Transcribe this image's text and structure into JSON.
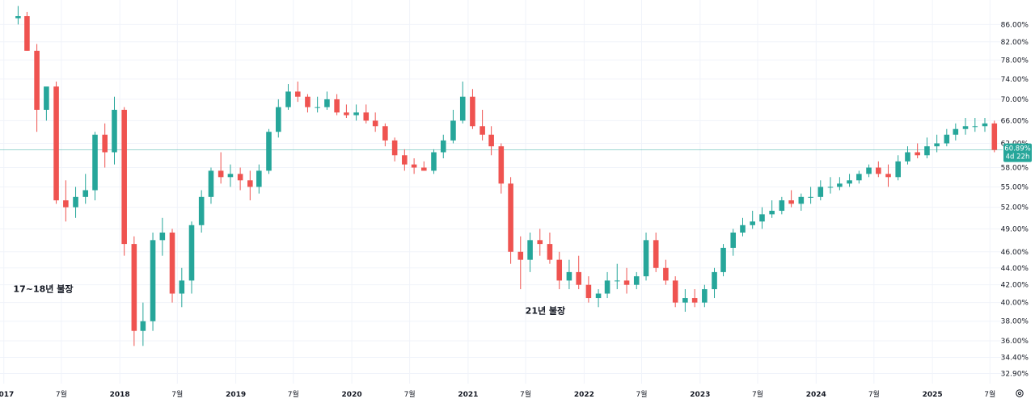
{
  "chart_data": {
    "type": "candlestick",
    "title": "",
    "xlabel": "",
    "ylabel": "",
    "y_scale": "log",
    "ylim": [
      32.0,
      92.0
    ],
    "xlim": [
      "2016-12-20",
      "2025-08-10"
    ],
    "grid": true,
    "y_ticks": [
      "86.00%",
      "82.00%",
      "78.00%",
      "74.00%",
      "70.00%",
      "66.00%",
      "62.00%",
      "58.00%",
      "55.00%",
      "52.00%",
      "49.00%",
      "46.00%",
      "44.00%",
      "42.00%",
      "40.00%",
      "38.00%",
      "36.00%",
      "34.40%",
      "32.90%"
    ],
    "x_ticks": [
      {
        "label": "2017",
        "date": "2017-01-01",
        "year": true
      },
      {
        "label": "7월",
        "date": "2017-07-01",
        "year": false
      },
      {
        "label": "2018",
        "date": "2018-01-01",
        "year": true
      },
      {
        "label": "7월",
        "date": "2018-07-01",
        "year": false
      },
      {
        "label": "2019",
        "date": "2019-01-01",
        "year": true
      },
      {
        "label": "7월",
        "date": "2019-07-01",
        "year": false
      },
      {
        "label": "2020",
        "date": "2020-01-01",
        "year": true
      },
      {
        "label": "7월",
        "date": "2020-07-01",
        "year": false
      },
      {
        "label": "2021",
        "date": "2021-01-01",
        "year": true
      },
      {
        "label": "7월",
        "date": "2021-07-01",
        "year": false
      },
      {
        "label": "2022",
        "date": "2022-01-01",
        "year": true
      },
      {
        "label": "7월",
        "date": "2022-07-01",
        "year": false
      },
      {
        "label": "2023",
        "date": "2023-01-01",
        "year": true
      },
      {
        "label": "7월",
        "date": "2023-07-01",
        "year": false
      },
      {
        "label": "2024",
        "date": "2024-01-01",
        "year": true
      },
      {
        "label": "7월",
        "date": "2024-07-01",
        "year": false
      },
      {
        "label": "2025",
        "date": "2025-01-01",
        "year": true
      },
      {
        "label": "7월",
        "date": "2025-07-01",
        "year": false
      }
    ],
    "annotations": [
      {
        "text": "17~18년 불장",
        "date": "2017-05-05",
        "y": 41.2
      },
      {
        "text": "21년 불장",
        "date": "2021-09-01",
        "y": 38.8
      }
    ],
    "last_price": {
      "value": 60.89,
      "label": "60.89%",
      "countdown": "4d 22h"
    },
    "colors": {
      "up": "#26a69a",
      "down": "#ef5350",
      "price_line": "#26a69a",
      "grid": "#f0f3fa"
    },
    "series": [
      {
        "x": [
          "2017-02-15",
          "2017-03-15",
          "2017-04-15",
          "2017-05-15",
          "2017-06-15",
          "2017-07-15",
          "2017-08-15",
          "2017-09-15",
          "2017-10-15",
          "2017-11-15",
          "2017-12-15",
          "2018-01-15",
          "2018-02-15",
          "2018-03-15",
          "2018-04-15",
          "2018-05-15",
          "2018-06-15",
          "2018-07-15",
          "2018-08-15",
          "2018-09-15",
          "2018-10-15",
          "2018-11-15",
          "2018-12-15",
          "2019-01-15",
          "2019-02-15",
          "2019-03-15",
          "2019-04-15",
          "2019-05-15",
          "2019-06-15",
          "2019-07-15",
          "2019-08-15",
          "2019-09-15",
          "2019-10-15",
          "2019-11-15",
          "2019-12-15",
          "2020-01-15",
          "2020-02-15",
          "2020-03-15",
          "2020-04-15",
          "2020-05-15",
          "2020-06-15",
          "2020-07-15",
          "2020-08-15",
          "2020-09-15",
          "2020-10-15",
          "2020-11-15",
          "2020-12-15",
          "2021-01-15",
          "2021-02-15",
          "2021-03-15",
          "2021-04-15",
          "2021-05-15",
          "2021-06-15",
          "2021-07-15",
          "2021-08-15",
          "2021-09-15",
          "2021-10-15",
          "2021-11-15",
          "2021-12-15",
          "2022-01-15",
          "2022-02-15",
          "2022-03-15",
          "2022-04-15",
          "2022-05-15",
          "2022-06-15",
          "2022-07-15",
          "2022-08-15",
          "2022-09-15",
          "2022-10-15",
          "2022-11-15",
          "2022-12-15",
          "2023-01-15",
          "2023-02-15",
          "2023-03-15",
          "2023-04-15",
          "2023-05-15",
          "2023-06-15",
          "2023-07-15",
          "2023-08-15",
          "2023-09-15",
          "2023-10-15",
          "2023-11-15",
          "2023-12-15",
          "2024-01-15",
          "2024-02-15",
          "2024-03-15",
          "2024-04-15",
          "2024-05-15",
          "2024-06-15",
          "2024-07-15",
          "2024-08-15",
          "2024-09-15",
          "2024-10-15",
          "2024-11-15",
          "2024-12-15",
          "2025-01-15",
          "2025-02-15",
          "2025-03-15",
          "2025-04-15",
          "2025-05-15",
          "2025-06-15",
          "2025-07-15"
        ],
        "open": [
          87.5,
          88.0,
          80.0,
          68.0,
          72.5,
          53.0,
          52.0,
          53.5,
          54.5,
          63.5,
          60.5,
          68.0,
          47.0,
          37.0,
          38.0,
          47.5,
          48.5,
          41.0,
          42.5,
          49.5,
          53.5,
          57.5,
          56.5,
          57.0,
          56.0,
          55.0,
          57.5,
          64.0,
          68.5,
          71.5,
          70.5,
          68.5,
          68.5,
          70.0,
          67.5,
          67.0,
          67.5,
          66.0,
          65.0,
          62.5,
          60.0,
          58.5,
          58.0,
          57.5,
          60.5,
          62.5,
          66.0,
          70.5,
          65.0,
          63.5,
          61.5,
          55.5,
          46.0,
          45.0,
          47.5,
          47.0,
          45.0,
          42.5,
          43.5,
          42.0,
          40.5,
          41.0,
          42.5,
          42.5,
          42.0,
          43.0,
          47.5,
          44.0,
          42.5,
          40.0,
          40.5,
          40.0,
          41.5,
          43.5,
          46.5,
          48.5,
          49.5,
          50.0,
          51.0,
          51.5,
          53.0,
          52.5,
          53.5,
          53.5,
          55.0,
          55.0,
          55.5,
          56.0,
          57.0,
          58.0,
          57.0,
          56.5,
          59.0,
          60.5,
          60.0,
          61.5,
          62.0,
          63.5,
          64.5,
          65.0,
          65.0,
          65.5
        ],
        "high": [
          90.5,
          89.0,
          81.5,
          72.0,
          73.5,
          56.0,
          55.0,
          57.0,
          64.0,
          65.5,
          70.5,
          68.5,
          48.0,
          40.0,
          48.5,
          50.5,
          49.0,
          44.0,
          50.0,
          54.5,
          58.0,
          60.5,
          58.5,
          58.0,
          57.5,
          58.5,
          64.5,
          70.0,
          73.0,
          73.5,
          71.0,
          70.5,
          71.5,
          71.0,
          69.0,
          69.0,
          69.0,
          67.5,
          65.5,
          63.0,
          61.0,
          59.5,
          59.0,
          61.0,
          63.5,
          68.0,
          73.5,
          72.0,
          68.0,
          65.0,
          62.0,
          56.5,
          48.0,
          48.5,
          49.0,
          48.5,
          46.0,
          45.0,
          45.5,
          43.0,
          41.5,
          43.5,
          44.5,
          44.0,
          43.5,
          48.5,
          48.5,
          45.0,
          43.0,
          41.5,
          41.5,
          42.0,
          44.0,
          47.0,
          49.0,
          50.5,
          51.5,
          52.0,
          53.0,
          53.5,
          54.5,
          54.0,
          55.0,
          56.0,
          56.5,
          56.5,
          57.0,
          57.5,
          58.5,
          59.0,
          58.5,
          60.0,
          61.5,
          62.0,
          63.0,
          63.5,
          64.5,
          65.5,
          66.5,
          66.5,
          66.5,
          66.0
        ],
        "low": [
          86.0,
          80.0,
          64.0,
          66.0,
          52.5,
          50.0,
          50.5,
          52.5,
          53.0,
          58.0,
          58.5,
          45.5,
          35.5,
          35.5,
          37.0,
          45.5,
          40.0,
          39.5,
          41.0,
          48.5,
          52.5,
          55.5,
          55.0,
          54.5,
          53.0,
          54.0,
          57.0,
          63.0,
          68.0,
          69.5,
          67.5,
          67.5,
          68.0,
          67.0,
          66.5,
          66.0,
          65.5,
          64.0,
          61.5,
          59.0,
          57.5,
          57.0,
          57.5,
          57.0,
          59.5,
          62.0,
          65.5,
          64.5,
          62.5,
          60.0,
          54.0,
          44.5,
          41.5,
          43.5,
          45.5,
          44.5,
          41.5,
          41.5,
          41.5,
          40.0,
          39.5,
          40.5,
          41.5,
          41.0,
          41.5,
          42.5,
          43.5,
          42.0,
          39.5,
          39.0,
          39.5,
          39.5,
          40.5,
          43.0,
          45.5,
          48.0,
          49.0,
          49.0,
          50.5,
          51.0,
          52.0,
          51.5,
          52.5,
          53.0,
          54.0,
          54.5,
          55.0,
          55.5,
          56.5,
          56.5,
          55.0,
          56.0,
          58.5,
          59.5,
          59.5,
          60.5,
          61.5,
          62.5,
          63.5,
          64.0,
          64.0,
          60.5
        ],
        "close": [
          88.0,
          80.0,
          68.0,
          72.5,
          53.0,
          52.0,
          53.5,
          54.5,
          63.5,
          60.5,
          68.0,
          47.0,
          37.0,
          38.0,
          47.5,
          48.5,
          41.0,
          42.5,
          49.5,
          53.5,
          57.5,
          56.5,
          57.0,
          56.0,
          55.0,
          57.5,
          64.0,
          68.5,
          71.5,
          70.5,
          68.5,
          68.5,
          70.0,
          67.5,
          67.0,
          67.5,
          66.0,
          65.0,
          62.5,
          60.0,
          58.5,
          58.0,
          57.5,
          60.5,
          62.5,
          66.0,
          70.5,
          65.0,
          63.5,
          61.5,
          55.5,
          46.0,
          45.0,
          47.5,
          47.0,
          45.0,
          42.5,
          43.5,
          42.0,
          40.5,
          41.0,
          42.5,
          42.5,
          42.0,
          43.0,
          47.5,
          44.0,
          42.5,
          40.0,
          40.5,
          40.0,
          41.5,
          43.5,
          46.5,
          48.5,
          49.5,
          50.0,
          51.0,
          51.5,
          53.0,
          52.5,
          53.5,
          53.5,
          55.0,
          55.0,
          55.5,
          56.0,
          57.0,
          58.0,
          57.0,
          56.5,
          59.0,
          60.5,
          60.0,
          61.5,
          62.0,
          63.5,
          64.5,
          65.0,
          65.0,
          65.5,
          60.89
        ]
      }
    ]
  }
}
